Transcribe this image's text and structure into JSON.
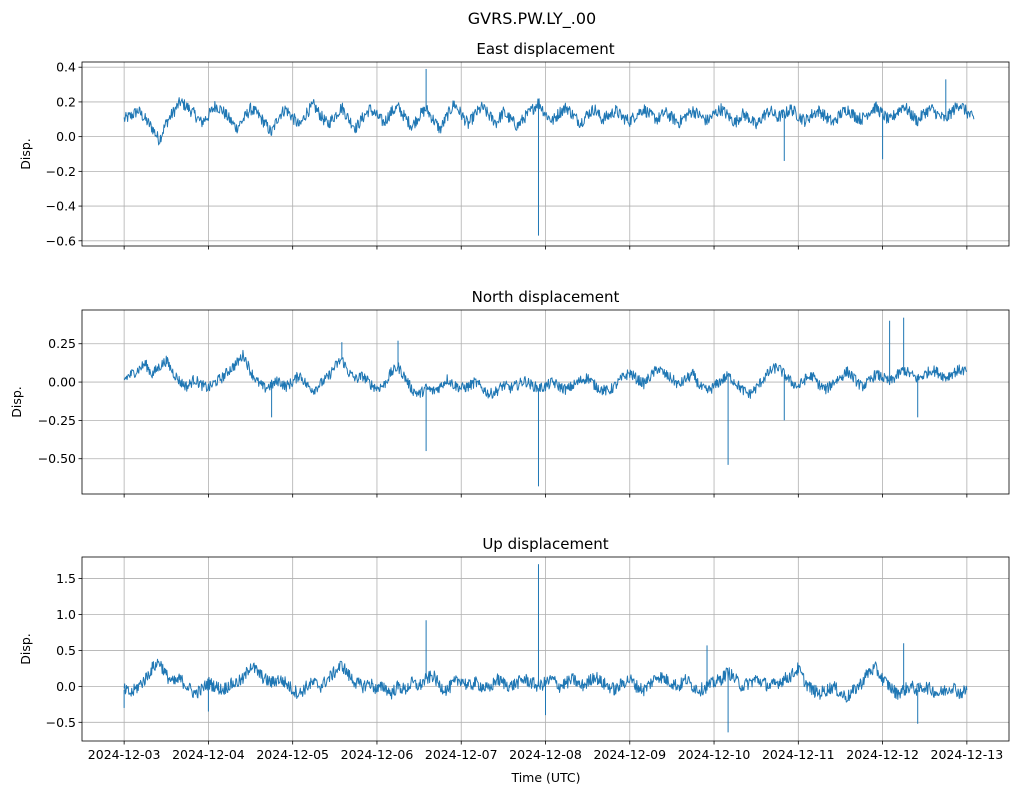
{
  "figure": {
    "title": "GVRS.PW.LY_.00",
    "xlabel": "Time (UTC)"
  },
  "chart_data": [
    {
      "type": "line",
      "title": "East displacement",
      "ylabel": "Disp.",
      "xlim": [
        "2024-12-03",
        "2024-12-13"
      ],
      "ylim": [
        -0.63,
        0.43
      ],
      "yticks": [
        -0.6,
        -0.4,
        -0.2,
        0.0,
        0.2,
        0.4
      ],
      "ytick_labels": [
        "−0.6",
        "−0.4",
        "−0.2",
        "0.0",
        "0.2",
        "0.4"
      ],
      "grid": true,
      "color": "#1f77b4",
      "series": [
        {
          "x_start": "2024-12-03",
          "x_step_hours": 2,
          "values": [
            0.1,
            0.12,
            0.15,
            0.1,
            0.05,
            -0.02,
            0.08,
            0.14,
            0.2,
            0.17,
            0.13,
            0.08,
            0.12,
            0.18,
            0.15,
            0.1,
            0.05,
            0.1,
            0.16,
            0.13,
            0.08,
            0.02,
            0.12,
            0.16,
            0.11,
            0.06,
            0.14,
            0.18,
            0.12,
            0.07,
            0.12,
            0.17,
            0.1,
            0.05,
            0.11,
            0.16,
            0.12,
            0.08,
            0.14,
            0.17,
            0.11,
            0.06,
            0.12,
            0.16,
            0.1,
            0.04,
            0.12,
            0.19,
            0.13,
            0.07,
            0.13,
            0.17,
            0.12,
            0.08,
            0.14,
            0.1,
            0.06,
            0.11,
            0.15,
            0.2,
            0.13,
            0.09,
            0.14,
            0.17,
            0.12,
            0.08,
            0.13,
            0.16,
            0.1,
            0.12,
            0.15,
            0.11,
            0.09,
            0.13,
            0.16,
            0.12,
            0.1,
            0.14,
            0.11,
            0.08,
            0.12,
            0.15,
            0.12,
            0.09,
            0.13,
            0.16,
            0.12,
            0.08,
            0.13,
            0.11,
            0.06,
            0.12,
            0.15,
            0.11,
            0.13,
            0.16,
            0.12,
            0.09,
            0.13,
            0.15,
            0.11,
            0.08,
            0.13,
            0.16,
            0.12,
            0.1,
            0.14,
            0.17,
            0.13,
            0.09,
            0.14,
            0.18,
            0.13,
            0.09,
            0.14,
            0.16,
            0.12,
            0.1,
            0.15,
            0.19,
            0.14,
            0.1
          ]
        }
      ],
      "spikes": [
        {
          "x": "2024-12-07 22:00",
          "y": -0.57
        },
        {
          "x": "2024-12-06 14:00",
          "y": 0.39
        },
        {
          "x": "2024-12-12 18:00",
          "y": 0.33
        },
        {
          "x": "2024-12-10 20:00",
          "y": -0.14
        },
        {
          "x": "2024-12-12 00:00",
          "y": -0.13
        }
      ]
    },
    {
      "type": "line",
      "title": "North displacement",
      "ylabel": "Disp.",
      "xlim": [
        "2024-12-03",
        "2024-12-13"
      ],
      "ylim": [
        -0.73,
        0.47
      ],
      "yticks": [
        -0.5,
        -0.25,
        0.0,
        0.25
      ],
      "ytick_labels": [
        "−0.50",
        "−0.25",
        "0.00",
        "0.25"
      ],
      "grid": true,
      "color": "#1f77b4",
      "series": [
        {
          "x_start": "2024-12-03",
          "x_step_hours": 2,
          "values": [
            0.02,
            0.05,
            0.08,
            0.12,
            0.05,
            0.1,
            0.14,
            0.06,
            0.0,
            -0.03,
            0.02,
            -0.02,
            -0.04,
            0.0,
            0.03,
            0.08,
            0.12,
            0.18,
            0.07,
            0.0,
            -0.04,
            -0.02,
            0.01,
            -0.03,
            0.0,
            0.05,
            -0.02,
            -0.05,
            -0.01,
            0.03,
            0.1,
            0.15,
            0.06,
            0.02,
            0.04,
            -0.01,
            -0.04,
            -0.02,
            0.06,
            0.1,
            0.03,
            -0.05,
            -0.08,
            -0.04,
            -0.06,
            -0.03,
            0.02,
            -0.02,
            -0.04,
            -0.03,
            0.0,
            -0.04,
            -0.08,
            -0.06,
            -0.02,
            -0.04,
            -0.02,
            0.01,
            -0.02,
            -0.04,
            -0.03,
            0.0,
            -0.03,
            -0.05,
            -0.02,
            0.01,
            0.03,
            -0.02,
            -0.05,
            -0.06,
            -0.02,
            0.03,
            0.06,
            0.02,
            -0.01,
            0.04,
            0.09,
            0.05,
            0.02,
            -0.02,
            0.02,
            0.05,
            -0.03,
            -0.06,
            -0.03,
            0.01,
            0.04,
            0.0,
            -0.05,
            -0.08,
            -0.04,
            0.02,
            0.07,
            0.1,
            0.05,
            0.0,
            -0.03,
            0.02,
            0.04,
            -0.02,
            -0.05,
            0.0,
            0.03,
            0.07,
            0.02,
            -0.03,
            0.0,
            0.05,
            0.03,
            0.0,
            0.04,
            0.08,
            0.05,
            0.02,
            0.05,
            0.08,
            0.06,
            0.03,
            0.06,
            0.08,
            0.07
          ]
        }
      ],
      "spikes": [
        {
          "x": "2024-12-07 22:00",
          "y": -0.68
        },
        {
          "x": "2024-12-10 04:00",
          "y": -0.54
        },
        {
          "x": "2024-12-06 14:00",
          "y": -0.45
        },
        {
          "x": "2024-12-12 02:00",
          "y": 0.4
        },
        {
          "x": "2024-12-12 06:00",
          "y": 0.42
        },
        {
          "x": "2024-12-06 06:00",
          "y": 0.27
        },
        {
          "x": "2024-12-05 14:00",
          "y": 0.26
        },
        {
          "x": "2024-12-12 10:00",
          "y": -0.23
        },
        {
          "x": "2024-12-04 18:00",
          "y": -0.23
        },
        {
          "x": "2024-12-10 20:00",
          "y": -0.25
        }
      ]
    },
    {
      "type": "line",
      "title": "Up displacement",
      "ylabel": "Disp.",
      "xlim": [
        "2024-12-03",
        "2024-12-13"
      ],
      "ylim": [
        -0.76,
        1.8
      ],
      "yticks": [
        -0.5,
        0.0,
        0.5,
        1.0,
        1.5
      ],
      "ytick_labels": [
        "−0.5",
        "0.0",
        "0.5",
        "1.0",
        "1.5"
      ],
      "grid": true,
      "color": "#1f77b4",
      "series": [
        {
          "x_start": "2024-12-03",
          "x_step_hours": 2,
          "values": [
            -0.05,
            -0.1,
            0.0,
            0.1,
            0.25,
            0.35,
            0.15,
            0.05,
            0.1,
            0.0,
            -0.1,
            -0.05,
            0.05,
            0.0,
            -0.05,
            0.02,
            0.05,
            0.1,
            0.3,
            0.2,
            0.1,
            0.05,
            0.1,
            0.05,
            -0.05,
            -0.1,
            0.0,
            0.05,
            0.0,
            0.1,
            0.2,
            0.3,
            0.15,
            0.05,
            0.0,
            0.05,
            -0.05,
            0.0,
            -0.1,
            0.0,
            -0.05,
            0.05,
            0.0,
            0.1,
            0.15,
            0.0,
            -0.05,
            0.05,
            0.1,
            0.0,
            0.05,
            0.0,
            -0.05,
            0.1,
            0.05,
            0.0,
            0.05,
            0.1,
            0.05,
            0.0,
            0.05,
            0.1,
            0.0,
            0.05,
            0.1,
            0.0,
            0.05,
            0.15,
            0.05,
            0.0,
            -0.05,
            0.05,
            0.1,
            0.0,
            -0.05,
            0.05,
            0.15,
            0.1,
            0.05,
            0.0,
            0.1,
            0.0,
            -0.05,
            0.0,
            0.05,
            0.1,
            0.2,
            0.1,
            0.0,
            0.05,
            0.1,
            0.05,
            0.0,
            0.05,
            0.1,
            0.15,
            0.25,
            0.05,
            -0.05,
            -0.1,
            -0.05,
            0.0,
            -0.1,
            -0.15,
            -0.05,
            0.05,
            0.2,
            0.25,
            0.1,
            0.0,
            -0.1,
            -0.05,
            0.0,
            -0.05,
            0.0,
            -0.05,
            -0.1,
            -0.05,
            0.0,
            -0.1,
            -0.05
          ]
        }
      ],
      "spikes": [
        {
          "x": "2024-12-07 22:00",
          "y": 1.7
        },
        {
          "x": "2024-12-06 14:00",
          "y": 0.92
        },
        {
          "x": "2024-12-09 22:00",
          "y": 0.57
        },
        {
          "x": "2024-12-12 06:00",
          "y": 0.6
        },
        {
          "x": "2024-12-10 04:00",
          "y": -0.64
        },
        {
          "x": "2024-12-12 10:00",
          "y": -0.52
        },
        {
          "x": "2024-12-08 00:00",
          "y": -0.4
        },
        {
          "x": "2024-12-03 00:00",
          "y": -0.3
        },
        {
          "x": "2024-12-04 00:00",
          "y": -0.35
        }
      ]
    }
  ],
  "xticks": [
    "2024-12-03",
    "2024-12-04",
    "2024-12-05",
    "2024-12-06",
    "2024-12-07",
    "2024-12-08",
    "2024-12-09",
    "2024-12-10",
    "2024-12-11",
    "2024-12-12",
    "2024-12-13"
  ]
}
